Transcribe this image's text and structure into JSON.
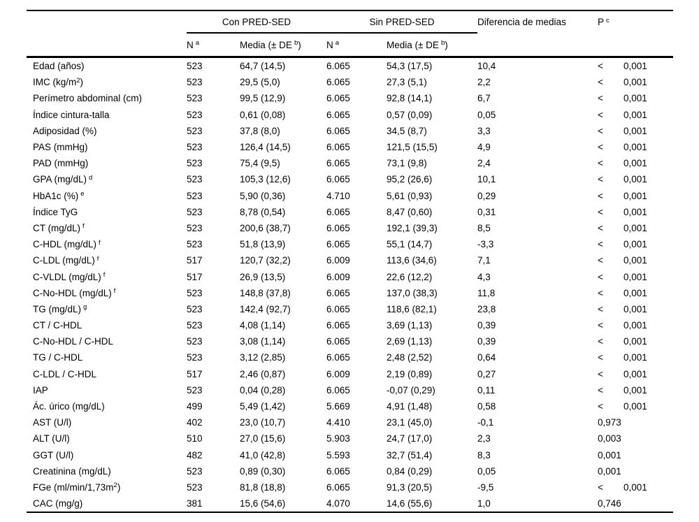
{
  "colors": {
    "text": "#000000",
    "background": "#ffffff",
    "rule": "#000000"
  },
  "table": {
    "header": {
      "group1": "Con PRED-SED",
      "group2": "Sin PRED-SED",
      "diff": "Diferencia de medias",
      "p_label": "P",
      "p_sup": "c",
      "col_n": "N",
      "col_n_sup": "a",
      "col_media_pre": "Media (± DE",
      "col_media_sup": "b",
      "col_media_post": ")"
    },
    "rows": [
      {
        "label": "Edad (años)",
        "sup": "",
        "label2": "",
        "sup2": "",
        "n1": "523",
        "m1": "64,7 (14,5)",
        "n2": "6.065",
        "m2": "54,3 (17,5)",
        "diff": "10,4",
        "lt": "<",
        "p": "0,001"
      },
      {
        "label": "IMC (kg/m",
        "sup": "2",
        "label2": ")",
        "sup2": "",
        "n1": "523",
        "m1": "29,5 (5,0)",
        "n2": "6.065",
        "m2": "27,3 (5,1)",
        "diff": "2,2",
        "lt": "<",
        "p": "0,001"
      },
      {
        "label": "Perímetro abdominal (cm)",
        "sup": "",
        "label2": "",
        "sup2": "",
        "n1": "523",
        "m1": "99,5 (12,9)",
        "n2": "6.065",
        "m2": "92,8 (14,1)",
        "diff": "6,7",
        "lt": "<",
        "p": "0,001"
      },
      {
        "label": "Índice cintura-talla",
        "sup": "",
        "label2": "",
        "sup2": "",
        "n1": "523",
        "m1": "0,61 (0,08)",
        "n2": "6.065",
        "m2": "0,57 (0,09)",
        "diff": "0,05",
        "lt": "<",
        "p": "0,001"
      },
      {
        "label": "Adiposidad (%)",
        "sup": "",
        "label2": "",
        "sup2": "",
        "n1": "523",
        "m1": "37,8 (8,0)",
        "n2": "6.065",
        "m2": "34,5 (8,7)",
        "diff": "3,3",
        "lt": "<",
        "p": "0,001"
      },
      {
        "label": "PAS (mmHg)",
        "sup": "",
        "label2": "",
        "sup2": "",
        "n1": "523",
        "m1": "126,4 (14,5)",
        "n2": "6.065",
        "m2": "121,5 (15,5)",
        "diff": "4,9",
        "lt": "<",
        "p": "0,001"
      },
      {
        "label": "PAD (mmHg)",
        "sup": "",
        "label2": "",
        "sup2": "",
        "n1": "523",
        "m1": "75,4 (9,5)",
        "n2": "6.065",
        "m2": "73,1 (9,8)",
        "diff": "2,4",
        "lt": "<",
        "p": "0,001"
      },
      {
        "label": "GPA (mg/dL)",
        "sup": "",
        "label2": "",
        "sup2": "d",
        "n1": "523",
        "m1": "105,3 (12,6)",
        "n2": "6.065",
        "m2": "95,2 (26,6)",
        "diff": "10,1",
        "lt": "<",
        "p": "0,001"
      },
      {
        "label": "HbA1c (%)",
        "sup": "",
        "label2": "",
        "sup2": "e",
        "n1": "523",
        "m1": "5,90 (0,36)",
        "n2": "4.710",
        "m2": "5,61 (0,93)",
        "diff": "0,29",
        "lt": "<",
        "p": "0,001"
      },
      {
        "label": "Índice TyG",
        "sup": "",
        "label2": "",
        "sup2": "",
        "n1": "523",
        "m1": "8,78 (0,54)",
        "n2": "6.065",
        "m2": "8,47 (0,60)",
        "diff": "0,31",
        "lt": "<",
        "p": "0,001"
      },
      {
        "label": "CT (mg/dL)",
        "sup": "",
        "label2": "",
        "sup2": "f",
        "n1": "523",
        "m1": "200,6 (38,7)",
        "n2": "6.065",
        "m2": "192,1 (39,3)",
        "diff": "8,5",
        "lt": "<",
        "p": "0,001"
      },
      {
        "label": "C-HDL (mg/dL)",
        "sup": "",
        "label2": "",
        "sup2": "f",
        "n1": "523",
        "m1": "51,8 (13,9)",
        "n2": "6.065",
        "m2": "55,1 (14,7)",
        "diff": "-3,3",
        "lt": "<",
        "p": "0,001"
      },
      {
        "label": "C-LDL (mg/dL)",
        "sup": "",
        "label2": "",
        "sup2": "f",
        "n1": "517",
        "m1": "120,7 (32,2)",
        "n2": "6.009",
        "m2": "113,6 (34,6)",
        "diff": "7,1",
        "lt": "<",
        "p": "0,001"
      },
      {
        "label": "C-VLDL (mg/dL)",
        "sup": "",
        "label2": "",
        "sup2": "f",
        "n1": "517",
        "m1": "26,9 (13,5)",
        "n2": "6.009",
        "m2": "22,6 (12,2)",
        "diff": "4,3",
        "lt": "<",
        "p": "0,001"
      },
      {
        "label": "C-No-HDL (mg/dL)",
        "sup": "",
        "label2": "",
        "sup2": "f",
        "n1": "523",
        "m1": "148,8 (37,8)",
        "n2": "6.065",
        "m2": "137,0 (38,3)",
        "diff": "11,8",
        "lt": "<",
        "p": "0,001"
      },
      {
        "label": "TG (mg/dL)",
        "sup": "",
        "label2": "",
        "sup2": "g",
        "n1": "523",
        "m1": "142,4 (92,7)",
        "n2": "6.065",
        "m2": "118,6 (82,1)",
        "diff": "23,8",
        "lt": "<",
        "p": "0,001"
      },
      {
        "label": "CT / C-HDL",
        "sup": "",
        "label2": "",
        "sup2": "",
        "n1": "523",
        "m1": "4,08 (1,14)",
        "n2": "6.065",
        "m2": "3,69 (1,13)",
        "diff": "0,39",
        "lt": "<",
        "p": "0,001"
      },
      {
        "label": "C-No-HDL / C-HDL",
        "sup": "",
        "label2": "",
        "sup2": "",
        "n1": "523",
        "m1": "3,08 (1,14)",
        "n2": "6.065",
        "m2": "2,69 (1,13)",
        "diff": "0,39",
        "lt": "<",
        "p": "0,001"
      },
      {
        "label": "TG / C-HDL",
        "sup": "",
        "label2": "",
        "sup2": "",
        "n1": "523",
        "m1": "3,12 (2,85)",
        "n2": "6.065",
        "m2": "2,48 (2,52)",
        "diff": "0,64",
        "lt": "<",
        "p": "0,001"
      },
      {
        "label": "C-LDL / C-HDL",
        "sup": "",
        "label2": "",
        "sup2": "",
        "n1": "517",
        "m1": "2,46 (0,87)",
        "n2": "6.009",
        "m2": "2,19 (0,89)",
        "diff": "0,27",
        "lt": "<",
        "p": "0,001"
      },
      {
        "label": "IAP",
        "sup": "",
        "label2": "",
        "sup2": "",
        "n1": "523",
        "m1": "0,04 (0,28)",
        "n2": "6.065",
        "m2": "-0,07 (0,29)",
        "diff": "0,11",
        "lt": "<",
        "p": "0,001"
      },
      {
        "label": "Ác. úrico (mg/dL)",
        "sup": "",
        "label2": "",
        "sup2": "",
        "n1": "499",
        "m1": "5,49 (1,42)",
        "n2": "5.669",
        "m2": "4,91 (1,48)",
        "diff": "0,58",
        "lt": "<",
        "p": "0,001"
      },
      {
        "label": "AST (U/l)",
        "sup": "",
        "label2": "",
        "sup2": "",
        "n1": "402",
        "m1": "23,0 (10,7)",
        "n2": "4.410",
        "m2": "23,1 (45,0)",
        "diff": "-0,1",
        "lt": "",
        "p": "0,973"
      },
      {
        "label": "ALT (U/l)",
        "sup": "",
        "label2": "",
        "sup2": "",
        "n1": "510",
        "m1": "27,0 (15,6)",
        "n2": "5.903",
        "m2": "24,7 (17,0)",
        "diff": "2,3",
        "lt": "",
        "p": "0,003"
      },
      {
        "label": "GGT (U/l)",
        "sup": "",
        "label2": "",
        "sup2": "",
        "n1": "482",
        "m1": "41,0 (42,8)",
        "n2": "5.593",
        "m2": "32,7 (51,4)",
        "diff": "8,3",
        "lt": "",
        "p": "0,001"
      },
      {
        "label": "Creatinina (mg/dL)",
        "sup": "",
        "label2": "",
        "sup2": "",
        "n1": "523",
        "m1": "0,89 (0,30)",
        "n2": "6.065",
        "m2": "0,84 (0,29)",
        "diff": "0,05",
        "lt": "",
        "p": "0,001"
      },
      {
        "label": "FGe (ml/min/1,73m",
        "sup": "2",
        "label2": ")",
        "sup2": "",
        "n1": "523",
        "m1": "81,8 (18,8)",
        "n2": "6.065",
        "m2": "91,3 (20,5)",
        "diff": "-9,5",
        "lt": "<",
        "p": "0,001"
      },
      {
        "label": "CAC (mg/g)",
        "sup": "",
        "label2": "",
        "sup2": "",
        "n1": "381",
        "m1": "15,6 (54,6)",
        "n2": "4.070",
        "m2": "14,6 (55,6)",
        "diff": "1,0",
        "lt": "",
        "p": "0,746"
      }
    ]
  }
}
